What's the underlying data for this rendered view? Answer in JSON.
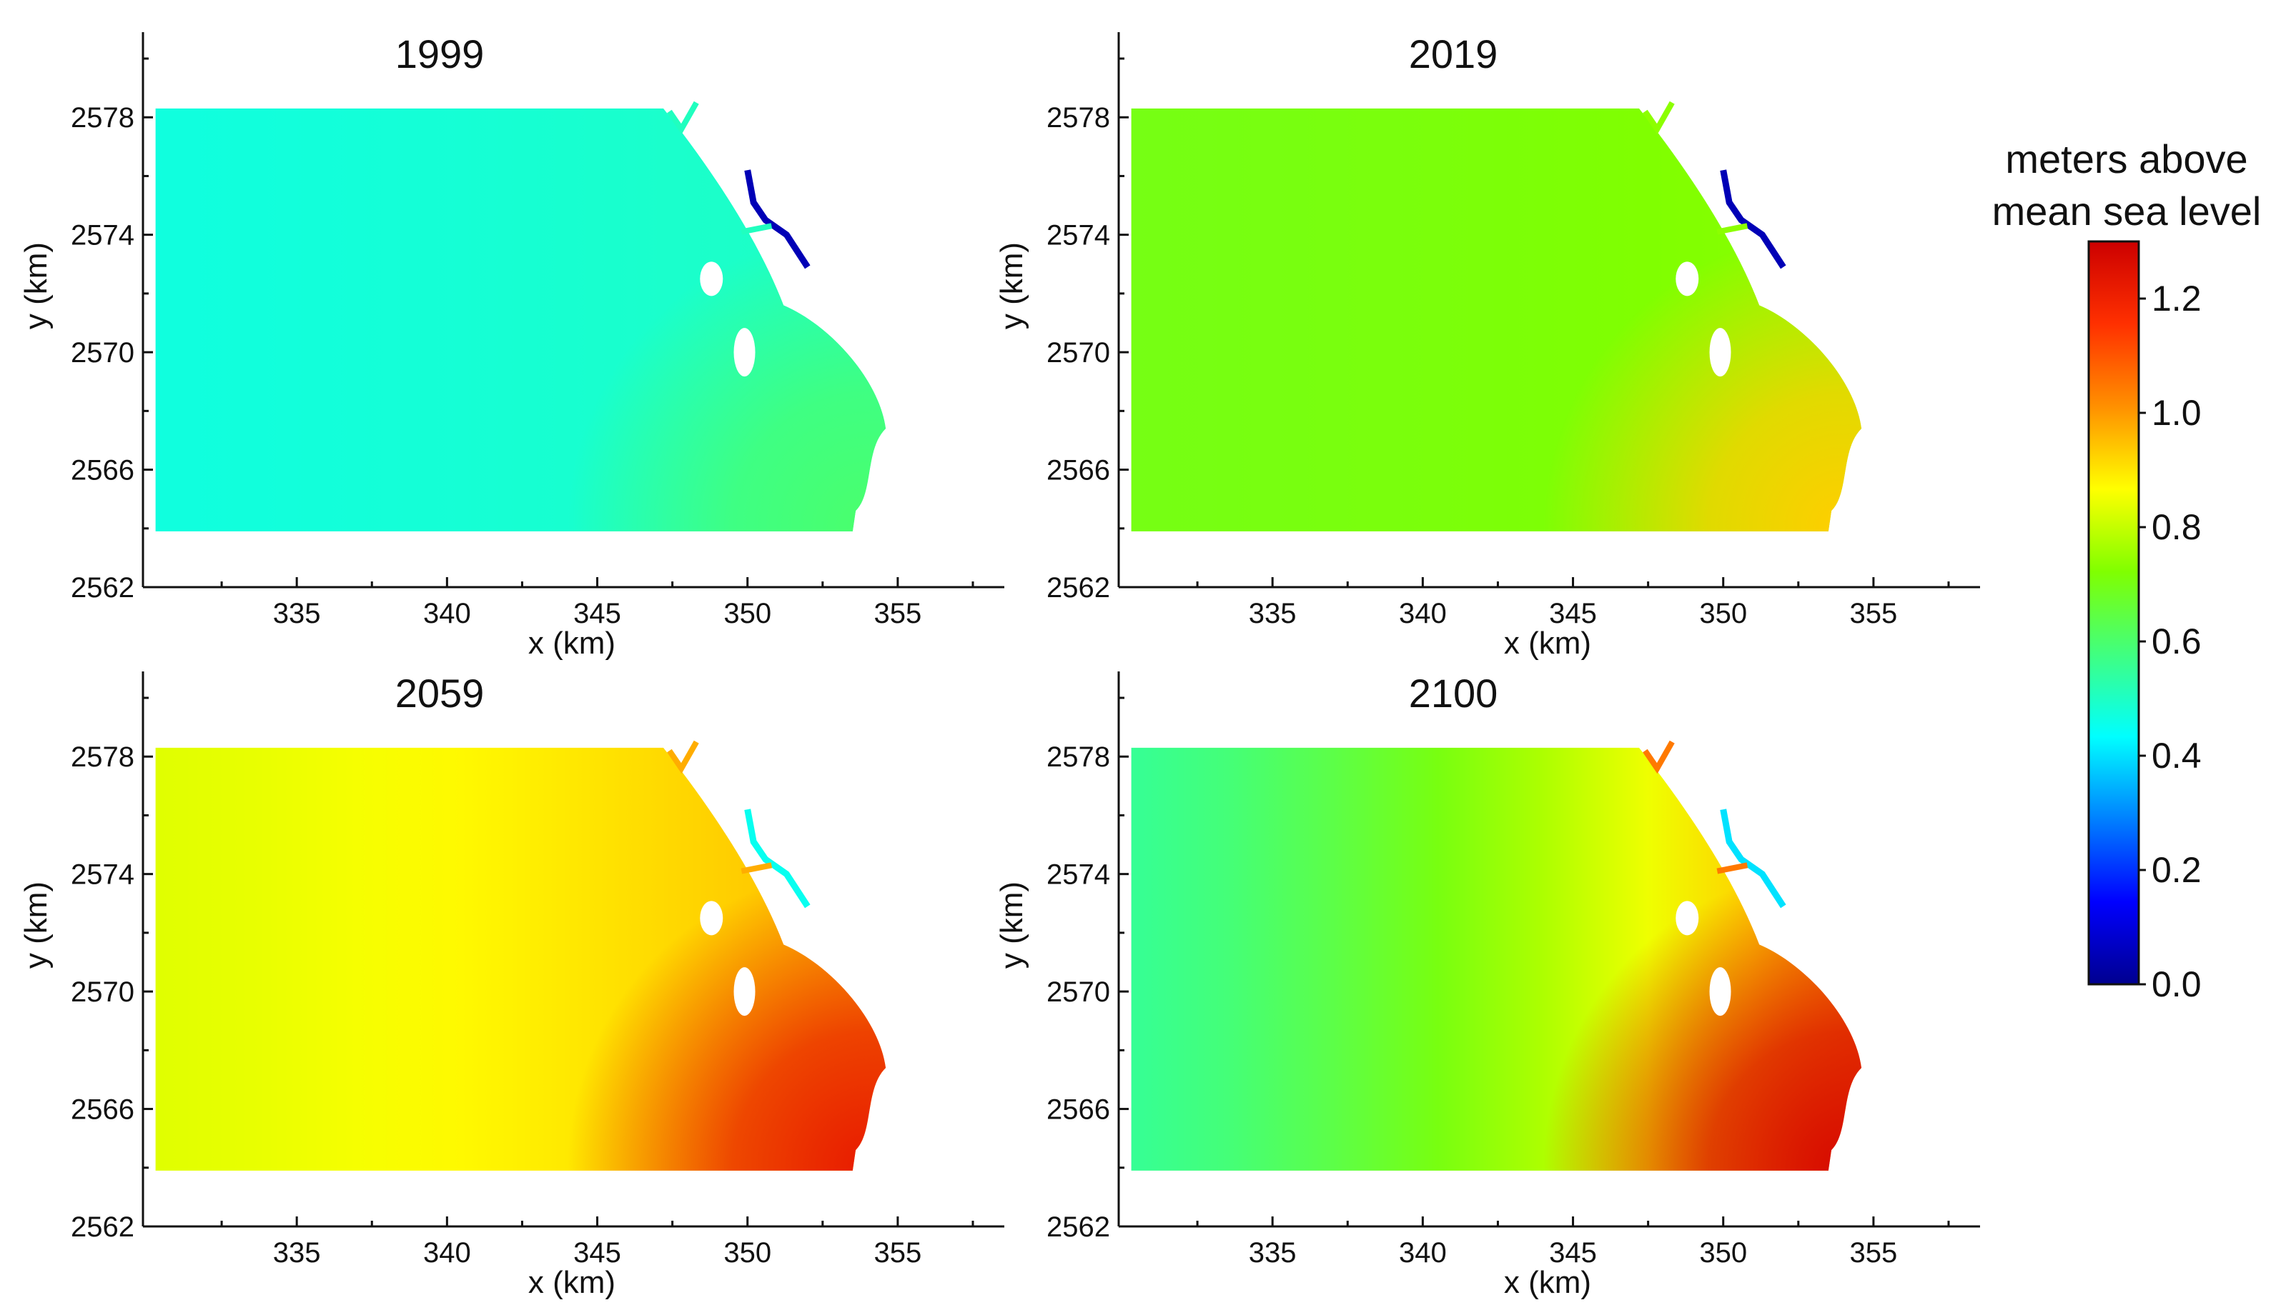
{
  "chart_data": [
    {
      "type": "heatmap",
      "title": "1999",
      "xlabel": "x (km)",
      "ylabel": "y (km)",
      "xlim": [
        330,
        358
      ],
      "ylim": [
        2562,
        2580
      ],
      "x_ticks": [
        335,
        340,
        345,
        350,
        355
      ],
      "y_ticks": [
        2562,
        2566,
        2570,
        2574,
        2578
      ],
      "field": {
        "base": 0.47,
        "gradient_x": 0.04,
        "east_max": 0.6
      }
    },
    {
      "type": "heatmap",
      "title": "2019",
      "xlabel": "x (km)",
      "ylabel": "y (km)",
      "xlim": [
        330,
        358
      ],
      "ylim": [
        2562,
        2580
      ],
      "x_ticks": [
        335,
        340,
        345,
        350,
        355
      ],
      "y_ticks": [
        2562,
        2566,
        2570,
        2574,
        2578
      ],
      "field": {
        "base": 0.7,
        "gradient_x": 0.04,
        "east_max": 0.93
      }
    },
    {
      "type": "heatmap",
      "title": "2059",
      "xlabel": "x (km)",
      "ylabel": "y (km)",
      "xlim": [
        330,
        358
      ],
      "ylim": [
        2562,
        2580
      ],
      "x_ticks": [
        335,
        340,
        345,
        350,
        355
      ],
      "y_ticks": [
        2562,
        2566,
        2570,
        2574,
        2578
      ],
      "field": {
        "base": 0.83,
        "gradient_x": 0.16,
        "east_max": 1.22
      }
    },
    {
      "type": "heatmap",
      "title": "2100",
      "xlabel": "x (km)",
      "ylabel": "y (km)",
      "xlim": [
        330,
        358
      ],
      "ylim": [
        2562,
        2580
      ],
      "x_ticks": [
        335,
        340,
        345,
        350,
        355
      ],
      "y_ticks": [
        2562,
        2566,
        2570,
        2574,
        2578
      ],
      "field": {
        "base": 0.55,
        "gradient_x": 0.55,
        "east_max": 1.27
      }
    }
  ],
  "colorbar": {
    "title_line1": "meters above",
    "title_line2": "mean sea level",
    "ticks": [
      "1.2",
      "1.0",
      "0.8",
      "0.6",
      "0.4",
      "0.2",
      "0.0"
    ],
    "tick_values": [
      1.2,
      1.0,
      0.8,
      0.6,
      0.4,
      0.2,
      0.0
    ],
    "range": [
      0.0,
      1.3
    ],
    "colors": [
      "#00008f",
      "#0000ff",
      "#0080ff",
      "#00ffff",
      "#40ff80",
      "#80ff00",
      "#ffff00",
      "#ff9000",
      "#ff3000",
      "#cc0000"
    ]
  }
}
